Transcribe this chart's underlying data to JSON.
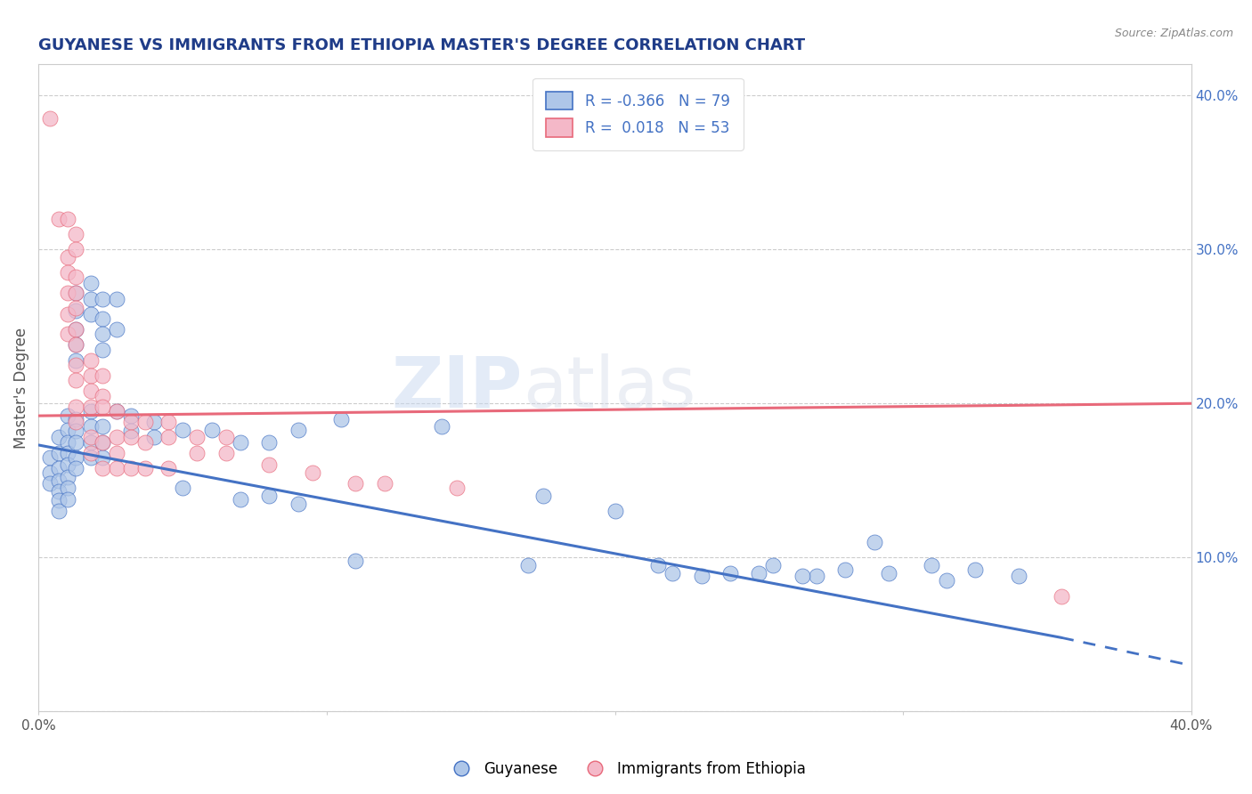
{
  "title": "GUYANESE VS IMMIGRANTS FROM ETHIOPIA MASTER'S DEGREE CORRELATION CHART",
  "source_text": "Source: ZipAtlas.com",
  "ylabel": "Master's Degree",
  "xlabel": "",
  "xlim": [
    0.0,
    0.4
  ],
  "ylim": [
    0.0,
    0.42
  ],
  "watermark": "ZIPatlas",
  "legend_R_blue": "-0.366",
  "legend_N_blue": "79",
  "legend_R_pink": " 0.018",
  "legend_N_pink": "53",
  "blue_color": "#aec6e8",
  "pink_color": "#f4b8c8",
  "blue_line_color": "#4472c4",
  "pink_line_color": "#e8697a",
  "title_color": "#1f3c88",
  "source_color": "#888888",
  "blue_scatter": [
    [
      0.004,
      0.165
    ],
    [
      0.004,
      0.155
    ],
    [
      0.004,
      0.148
    ],
    [
      0.007,
      0.178
    ],
    [
      0.007,
      0.168
    ],
    [
      0.007,
      0.158
    ],
    [
      0.007,
      0.15
    ],
    [
      0.007,
      0.143
    ],
    [
      0.007,
      0.137
    ],
    [
      0.007,
      0.13
    ],
    [
      0.01,
      0.192
    ],
    [
      0.01,
      0.183
    ],
    [
      0.01,
      0.175
    ],
    [
      0.01,
      0.168
    ],
    [
      0.01,
      0.16
    ],
    [
      0.01,
      0.152
    ],
    [
      0.01,
      0.145
    ],
    [
      0.01,
      0.138
    ],
    [
      0.013,
      0.272
    ],
    [
      0.013,
      0.26
    ],
    [
      0.013,
      0.248
    ],
    [
      0.013,
      0.238
    ],
    [
      0.013,
      0.228
    ],
    [
      0.013,
      0.19
    ],
    [
      0.013,
      0.182
    ],
    [
      0.013,
      0.175
    ],
    [
      0.013,
      0.165
    ],
    [
      0.013,
      0.158
    ],
    [
      0.018,
      0.278
    ],
    [
      0.018,
      0.268
    ],
    [
      0.018,
      0.258
    ],
    [
      0.018,
      0.195
    ],
    [
      0.018,
      0.185
    ],
    [
      0.018,
      0.175
    ],
    [
      0.018,
      0.165
    ],
    [
      0.022,
      0.268
    ],
    [
      0.022,
      0.255
    ],
    [
      0.022,
      0.245
    ],
    [
      0.022,
      0.235
    ],
    [
      0.022,
      0.185
    ],
    [
      0.022,
      0.175
    ],
    [
      0.022,
      0.165
    ],
    [
      0.027,
      0.268
    ],
    [
      0.027,
      0.248
    ],
    [
      0.027,
      0.195
    ],
    [
      0.032,
      0.192
    ],
    [
      0.032,
      0.182
    ],
    [
      0.04,
      0.188
    ],
    [
      0.04,
      0.178
    ],
    [
      0.05,
      0.183
    ],
    [
      0.06,
      0.183
    ],
    [
      0.07,
      0.175
    ],
    [
      0.08,
      0.175
    ],
    [
      0.09,
      0.183
    ],
    [
      0.105,
      0.19
    ],
    [
      0.14,
      0.185
    ],
    [
      0.175,
      0.14
    ],
    [
      0.2,
      0.13
    ],
    [
      0.215,
      0.095
    ],
    [
      0.24,
      0.09
    ],
    [
      0.255,
      0.095
    ],
    [
      0.27,
      0.088
    ],
    [
      0.29,
      0.11
    ],
    [
      0.31,
      0.095
    ],
    [
      0.325,
      0.092
    ],
    [
      0.34,
      0.088
    ],
    [
      0.05,
      0.145
    ],
    [
      0.07,
      0.138
    ],
    [
      0.08,
      0.14
    ],
    [
      0.09,
      0.135
    ],
    [
      0.11,
      0.098
    ],
    [
      0.17,
      0.095
    ],
    [
      0.22,
      0.09
    ],
    [
      0.23,
      0.088
    ],
    [
      0.25,
      0.09
    ],
    [
      0.265,
      0.088
    ],
    [
      0.28,
      0.092
    ],
    [
      0.295,
      0.09
    ],
    [
      0.315,
      0.085
    ]
  ],
  "pink_scatter": [
    [
      0.004,
      0.385
    ],
    [
      0.007,
      0.32
    ],
    [
      0.01,
      0.32
    ],
    [
      0.01,
      0.295
    ],
    [
      0.01,
      0.285
    ],
    [
      0.01,
      0.272
    ],
    [
      0.01,
      0.258
    ],
    [
      0.01,
      0.245
    ],
    [
      0.013,
      0.31
    ],
    [
      0.013,
      0.3
    ],
    [
      0.013,
      0.282
    ],
    [
      0.013,
      0.272
    ],
    [
      0.013,
      0.262
    ],
    [
      0.013,
      0.248
    ],
    [
      0.013,
      0.238
    ],
    [
      0.013,
      0.225
    ],
    [
      0.013,
      0.215
    ],
    [
      0.013,
      0.198
    ],
    [
      0.013,
      0.188
    ],
    [
      0.018,
      0.228
    ],
    [
      0.018,
      0.218
    ],
    [
      0.018,
      0.208
    ],
    [
      0.018,
      0.198
    ],
    [
      0.018,
      0.178
    ],
    [
      0.018,
      0.168
    ],
    [
      0.022,
      0.218
    ],
    [
      0.022,
      0.205
    ],
    [
      0.022,
      0.198
    ],
    [
      0.022,
      0.175
    ],
    [
      0.022,
      0.158
    ],
    [
      0.027,
      0.195
    ],
    [
      0.027,
      0.178
    ],
    [
      0.027,
      0.168
    ],
    [
      0.027,
      0.158
    ],
    [
      0.032,
      0.188
    ],
    [
      0.032,
      0.178
    ],
    [
      0.032,
      0.158
    ],
    [
      0.037,
      0.188
    ],
    [
      0.037,
      0.175
    ],
    [
      0.037,
      0.158
    ],
    [
      0.045,
      0.188
    ],
    [
      0.045,
      0.178
    ],
    [
      0.045,
      0.158
    ],
    [
      0.055,
      0.178
    ],
    [
      0.055,
      0.168
    ],
    [
      0.065,
      0.178
    ],
    [
      0.065,
      0.168
    ],
    [
      0.08,
      0.16
    ],
    [
      0.095,
      0.155
    ],
    [
      0.11,
      0.148
    ],
    [
      0.12,
      0.148
    ],
    [
      0.145,
      0.145
    ],
    [
      0.355,
      0.075
    ]
  ],
  "blue_trendline": [
    [
      0.0,
      0.173
    ],
    [
      0.355,
      0.048
    ]
  ],
  "blue_trendline_dash": [
    [
      0.355,
      0.048
    ],
    [
      0.4,
      0.03
    ]
  ],
  "pink_trendline": [
    [
      0.0,
      0.192
    ],
    [
      0.4,
      0.2
    ]
  ],
  "grid_color": "#cccccc",
  "background_color": "#ffffff"
}
